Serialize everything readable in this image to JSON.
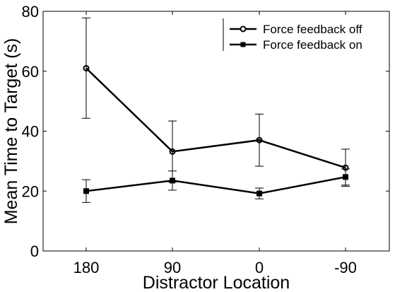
{
  "chart_data": {
    "type": "line",
    "xlabel": "Distractor Location",
    "ylabel": "Mean Time to Target (s)",
    "categories": [
      "180",
      "90",
      "0",
      "-90"
    ],
    "ylim": [
      0,
      80
    ],
    "yticks": [
      "0",
      "20",
      "40",
      "60",
      "80"
    ],
    "grid": false,
    "legend_position": "top-right",
    "series": [
      {
        "name": "Force feedback off",
        "marker": "circle",
        "values": [
          61,
          33.2,
          37,
          27.8
        ],
        "err_low": [
          44.3,
          23,
          28.3,
          21.6
        ],
        "err_high": [
          77.8,
          43.4,
          45.7,
          34
        ]
      },
      {
        "name": "Force feedback on",
        "marker": "square",
        "values": [
          20,
          23.5,
          19.2,
          24.7
        ],
        "err_low": [
          16.2,
          20.3,
          17.4,
          22
        ],
        "err_high": [
          23.8,
          26.7,
          21,
          27.4
        ]
      }
    ],
    "line_color": "#000000"
  }
}
